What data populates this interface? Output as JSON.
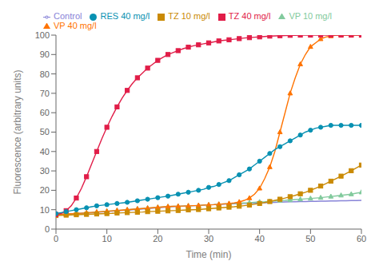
{
  "chart_data": {
    "type": "line",
    "xlabel": "Time (min)",
    "ylabel": "Fluorescence (arbitrary units)",
    "xlim": [
      0,
      60
    ],
    "ylim": [
      0,
      100
    ],
    "xticks": [
      0,
      10,
      20,
      30,
      40,
      50,
      60
    ],
    "yticks": [
      0,
      10,
      20,
      30,
      40,
      50,
      60,
      70,
      80,
      90,
      100
    ],
    "grid": false,
    "legend": "upper left",
    "x": [
      0,
      1,
      2,
      3,
      4,
      5,
      6,
      7,
      8,
      9,
      10,
      11,
      12,
      13,
      14,
      15,
      16,
      17,
      18,
      19,
      20,
      21,
      22,
      23,
      24,
      25,
      26,
      27,
      28,
      29,
      30,
      31,
      32,
      33,
      34,
      35,
      36,
      37,
      38,
      39,
      40,
      41,
      42,
      43,
      44,
      45,
      46,
      47,
      48,
      49,
      50,
      51,
      52,
      53,
      54,
      55,
      56,
      57,
      58,
      59,
      60
    ],
    "series": [
      {
        "name": "Control",
        "color": "#8884d8",
        "marker": "none",
        "line_style": "solid",
        "values": [
          7.5,
          7.6,
          7.7,
          7.8,
          7.9,
          8.1,
          8.2,
          8.4,
          8.6,
          8.8,
          9.0,
          9.2,
          9.4,
          9.6,
          9.8,
          10.0,
          10.2,
          10.4,
          10.6,
          10.8,
          11.0,
          11.2,
          11.4,
          11.6,
          11.7,
          11.8,
          12.0,
          12.1,
          12.2,
          12.3,
          12.5,
          12.6,
          12.7,
          12.8,
          12.9,
          13.0,
          13.1,
          13.2,
          13.3,
          13.4,
          13.5,
          13.6,
          13.7,
          13.8,
          13.9,
          14.0,
          14.1,
          14.1,
          14.2,
          14.2,
          14.3,
          14.3,
          14.4,
          14.4,
          14.5,
          14.5,
          14.6,
          14.6,
          14.7,
          14.7,
          14.8
        ]
      },
      {
        "name": "VP 10 mg/l",
        "color": "#82ca9d",
        "marker": "triangle",
        "line_style": "solid",
        "values": [
          7.5,
          7.6,
          7.7,
          7.9,
          8.0,
          8.2,
          8.4,
          8.6,
          8.8,
          9.0,
          9.2,
          9.4,
          9.6,
          9.8,
          10.0,
          10.2,
          10.4,
          10.6,
          10.8,
          11.0,
          11.2,
          11.4,
          11.6,
          11.7,
          11.8,
          11.9,
          12.0,
          12.1,
          12.2,
          12.4,
          12.5,
          12.6,
          12.8,
          13.0,
          13.1,
          13.2,
          13.4,
          13.5,
          13.6,
          13.8,
          14.0,
          14.1,
          14.3,
          14.5,
          14.7,
          14.8,
          15.0,
          15.2,
          15.4,
          15.6,
          15.8,
          16.0,
          16.2,
          16.5,
          16.8,
          17.1,
          17.4,
          17.7,
          18.0,
          18.5,
          19.0
        ]
      },
      {
        "name": "VP 40 mg/l",
        "color": "#ff7300",
        "marker": "triangle",
        "line_style": "solid",
        "values": [
          7.5,
          7.6,
          7.7,
          7.9,
          8.0,
          8.2,
          8.4,
          8.6,
          8.8,
          9.0,
          9.2,
          9.4,
          9.6,
          9.8,
          10.0,
          10.2,
          10.4,
          10.6,
          10.8,
          11.0,
          11.2,
          11.4,
          11.6,
          11.7,
          11.8,
          11.9,
          12.0,
          12.1,
          12.2,
          12.4,
          12.5,
          12.6,
          12.8,
          13.0,
          13.2,
          13.5,
          14.0,
          14.8,
          16.0,
          18.0,
          21.0,
          26.0,
          32.0,
          40.0,
          50.0,
          60.0,
          70.0,
          78.0,
          85.0,
          90.0,
          94.0,
          96.0,
          98.0,
          99.0,
          99.5,
          100.0,
          100.0,
          100.0,
          100.0,
          100.0,
          100.0
        ]
      },
      {
        "name": "TZ 10 mg/l",
        "color": "#ca8a04",
        "marker": "square",
        "line_style": "solid",
        "values": [
          7.0,
          7.1,
          7.2,
          7.3,
          7.4,
          7.5,
          7.6,
          7.7,
          7.8,
          7.9,
          8.0,
          8.1,
          8.3,
          8.4,
          8.5,
          8.6,
          8.7,
          8.8,
          9.0,
          9.1,
          9.2,
          9.3,
          9.4,
          9.5,
          9.6,
          9.8,
          9.9,
          10.0,
          10.1,
          10.3,
          10.5,
          10.7,
          10.9,
          11.1,
          11.3,
          11.5,
          11.8,
          12.1,
          12.4,
          12.8,
          13.2,
          13.7,
          14.2,
          14.8,
          15.4,
          16.0,
          16.7,
          17.4,
          18.2,
          19.0,
          20.0,
          21.0,
          22.2,
          23.4,
          24.7,
          26.0,
          27.3,
          28.7,
          30.1,
          31.5,
          33.0
        ]
      },
      {
        "name": "TZ 40 mg/l",
        "color": "#e11d48",
        "marker": "square",
        "line_style": "solid",
        "values": [
          7.5,
          8.0,
          9.5,
          12.0,
          16.0,
          21.0,
          27.0,
          33.5,
          40.0,
          46.5,
          52.5,
          58.0,
          63.0,
          67.5,
          71.5,
          75.0,
          78.0,
          80.5,
          83.0,
          85.0,
          87.0,
          88.5,
          90.0,
          91.0,
          92.0,
          93.0,
          93.8,
          94.5,
          95.0,
          95.5,
          96.0,
          96.5,
          97.0,
          97.3,
          97.6,
          97.9,
          98.2,
          98.5,
          98.7,
          98.9,
          99.1,
          99.3,
          99.5,
          99.6,
          99.7,
          99.8,
          99.9,
          99.9,
          100.0,
          100.0,
          100.0,
          100.0,
          100.0,
          100.0,
          100.0,
          100.0,
          100.0,
          100.0,
          100.0,
          100.0,
          100.0
        ]
      },
      {
        "name": "RES 40 mg/l",
        "color": "#0891b2",
        "marker": "circle",
        "line_style": "solid",
        "values": [
          8.0,
          8.5,
          9.0,
          9.5,
          10.0,
          10.5,
          11.0,
          11.5,
          12.0,
          12.3,
          12.6,
          12.9,
          13.2,
          13.5,
          13.8,
          14.2,
          14.6,
          15.0,
          15.4,
          15.8,
          16.2,
          16.6,
          17.0,
          17.5,
          18.0,
          18.5,
          19.0,
          19.5,
          20.0,
          20.5,
          21.5,
          22.0,
          23.0,
          24.0,
          25.0,
          26.5,
          28.0,
          29.5,
          31.0,
          33.0,
          35.0,
          37.0,
          39.0,
          41.0,
          42.5,
          44.0,
          45.5,
          47.0,
          48.5,
          50.0,
          51.0,
          52.0,
          52.5,
          53.0,
          53.5,
          53.5,
          53.5,
          53.5,
          53.5,
          53.5,
          53.5
        ]
      }
    ]
  }
}
